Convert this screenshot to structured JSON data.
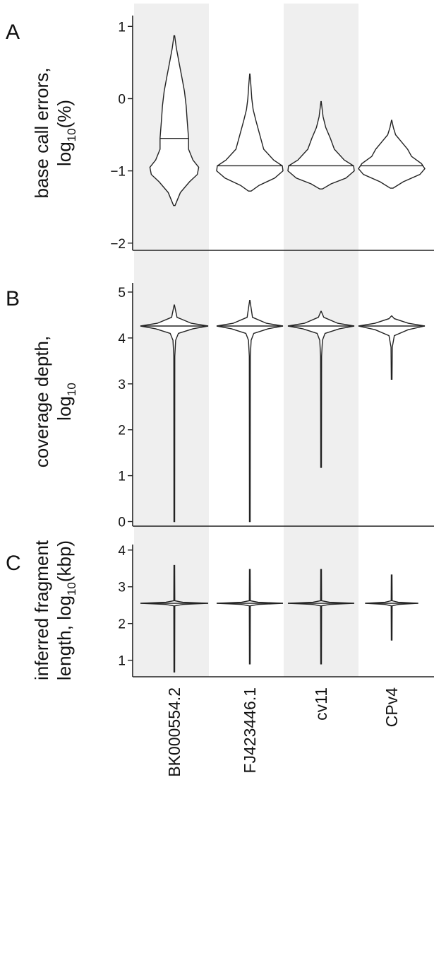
{
  "chart_data": {
    "type": "violin",
    "categories": [
      "BK000554.2",
      "FJ423446.1",
      "cv11",
      "CPv4"
    ],
    "shaded_categories": [
      "BK000554.2",
      "cv11"
    ],
    "shade_color": "#efefef",
    "panels": [
      {
        "letter": "A",
        "ylabel": [
          "base call errors,",
          "log",
          "10",
          "(%)"
        ],
        "ylim": [
          -2.1,
          1.15
        ],
        "yticks": [
          -2,
          -1,
          0,
          1
        ],
        "ytick_labels": [
          "−2",
          "−1",
          "0",
          "1"
        ],
        "violins": [
          {
            "min": -1.48,
            "max": 0.87,
            "median": -0.55,
            "profile": [
              [
                -1.48,
                0.02
              ],
              [
                -1.3,
                0.18
              ],
              [
                -1.15,
                0.45
              ],
              [
                -1.05,
                0.68
              ],
              [
                -0.95,
                0.72
              ],
              [
                -0.85,
                0.55
              ],
              [
                -0.7,
                0.42
              ],
              [
                -0.55,
                0.42
              ],
              [
                -0.3,
                0.38
              ],
              [
                -0.1,
                0.35
              ],
              [
                0.1,
                0.3
              ],
              [
                0.3,
                0.22
              ],
              [
                0.5,
                0.14
              ],
              [
                0.7,
                0.06
              ],
              [
                0.87,
                0.01
              ]
            ]
          },
          {
            "min": -1.28,
            "max": 0.34,
            "median": -0.93,
            "profile": [
              [
                -1.28,
                0.04
              ],
              [
                -1.2,
                0.28
              ],
              [
                -1.1,
                0.75
              ],
              [
                -1.0,
                1.0
              ],
              [
                -0.93,
                0.98
              ],
              [
                -0.85,
                0.72
              ],
              [
                -0.7,
                0.42
              ],
              [
                -0.5,
                0.3
              ],
              [
                -0.3,
                0.18
              ],
              [
                -0.15,
                0.1
              ],
              [
                0.0,
                0.06
              ],
              [
                0.2,
                0.03
              ],
              [
                0.34,
                0.005
              ]
            ]
          },
          {
            "min": -1.25,
            "max": -0.04,
            "median": -0.93,
            "profile": [
              [
                -1.25,
                0.04
              ],
              [
                -1.18,
                0.3
              ],
              [
                -1.1,
                0.75
              ],
              [
                -1.0,
                1.0
              ],
              [
                -0.93,
                0.98
              ],
              [
                -0.85,
                0.7
              ],
              [
                -0.7,
                0.4
              ],
              [
                -0.55,
                0.28
              ],
              [
                -0.4,
                0.14
              ],
              [
                -0.25,
                0.06
              ],
              [
                -0.04,
                0.005
              ]
            ]
          },
          {
            "min": -1.24,
            "max": -0.3,
            "median": -0.93,
            "profile": [
              [
                -1.24,
                0.04
              ],
              [
                -1.15,
                0.35
              ],
              [
                -1.05,
                0.85
              ],
              [
                -0.97,
                1.0
              ],
              [
                -0.9,
                0.9
              ],
              [
                -0.8,
                0.6
              ],
              [
                -0.7,
                0.48
              ],
              [
                -0.6,
                0.3
              ],
              [
                -0.5,
                0.12
              ],
              [
                -0.4,
                0.05
              ],
              [
                -0.3,
                0.005
              ]
            ]
          }
        ]
      },
      {
        "letter": "B",
        "ylabel": [
          "coverage depth,",
          "log",
          "10",
          ""
        ],
        "ylim": [
          -0.1,
          5.2
        ],
        "yticks": [
          0,
          1,
          2,
          3,
          4,
          5
        ],
        "ytick_labels": [
          "0",
          "1",
          "2",
          "3",
          "4",
          "5"
        ],
        "violins": [
          {
            "min": 0.0,
            "max": 4.72,
            "median": 4.26,
            "profile": [
              [
                0.0,
                0.01
              ],
              [
                3.6,
                0.015
              ],
              [
                3.95,
                0.04
              ],
              [
                4.1,
                0.12
              ],
              [
                4.2,
                0.55
              ],
              [
                4.26,
                1.0
              ],
              [
                4.32,
                0.5
              ],
              [
                4.45,
                0.08
              ],
              [
                4.72,
                0.005
              ]
            ]
          },
          {
            "min": 0.0,
            "max": 4.82,
            "median": 4.26,
            "profile": [
              [
                0.0,
                0.01
              ],
              [
                3.6,
                0.015
              ],
              [
                3.95,
                0.04
              ],
              [
                4.1,
                0.12
              ],
              [
                4.2,
                0.55
              ],
              [
                4.26,
                1.0
              ],
              [
                4.32,
                0.5
              ],
              [
                4.45,
                0.08
              ],
              [
                4.82,
                0.005
              ]
            ]
          },
          {
            "min": 1.18,
            "max": 4.58,
            "median": 4.26,
            "profile": [
              [
                1.18,
                0.01
              ],
              [
                3.6,
                0.015
              ],
              [
                3.95,
                0.04
              ],
              [
                4.1,
                0.12
              ],
              [
                4.2,
                0.55
              ],
              [
                4.26,
                1.0
              ],
              [
                4.32,
                0.5
              ],
              [
                4.45,
                0.08
              ],
              [
                4.58,
                0.005
              ]
            ]
          },
          {
            "min": 3.1,
            "max": 4.48,
            "median": 4.26,
            "profile": [
              [
                3.1,
                0.01
              ],
              [
                3.8,
                0.02
              ],
              [
                4.05,
                0.08
              ],
              [
                4.18,
                0.5
              ],
              [
                4.26,
                1.0
              ],
              [
                4.32,
                0.5
              ],
              [
                4.42,
                0.08
              ],
              [
                4.48,
                0.005
              ]
            ]
          }
        ]
      },
      {
        "letter": "C",
        "ylabel": [
          "inferred fragment",
          "length, log",
          "10",
          "(kbp)"
        ],
        "ylim": [
          0.55,
          4.15
        ],
        "yticks": [
          1,
          2,
          3,
          4
        ],
        "ytick_labels": [
          "1",
          "2",
          "3",
          "4"
        ],
        "violins": [
          {
            "min": 0.68,
            "max": 3.58,
            "median": 2.55,
            "profile": [
              [
                0.68,
                0.01
              ],
              [
                2.48,
                0.015
              ],
              [
                2.52,
                0.25
              ],
              [
                2.55,
                1.0
              ],
              [
                2.58,
                0.25
              ],
              [
                2.62,
                0.015
              ],
              [
                3.58,
                0.01
              ]
            ]
          },
          {
            "min": 0.9,
            "max": 3.47,
            "median": 2.55,
            "profile": [
              [
                0.9,
                0.01
              ],
              [
                2.48,
                0.015
              ],
              [
                2.52,
                0.25
              ],
              [
                2.55,
                1.0
              ],
              [
                2.58,
                0.25
              ],
              [
                2.62,
                0.015
              ],
              [
                3.47,
                0.01
              ]
            ]
          },
          {
            "min": 0.9,
            "max": 3.47,
            "median": 2.55,
            "profile": [
              [
                0.9,
                0.01
              ],
              [
                2.48,
                0.015
              ],
              [
                2.52,
                0.25
              ],
              [
                2.55,
                1.0
              ],
              [
                2.58,
                0.25
              ],
              [
                2.62,
                0.015
              ],
              [
                3.47,
                0.01
              ]
            ]
          },
          {
            "min": 1.55,
            "max": 3.32,
            "median": 2.55,
            "profile": [
              [
                1.55,
                0.01
              ],
              [
                2.48,
                0.015
              ],
              [
                2.52,
                0.2
              ],
              [
                2.55,
                0.8
              ],
              [
                2.58,
                0.2
              ],
              [
                2.62,
                0.015
              ],
              [
                3.32,
                0.01
              ]
            ]
          }
        ]
      }
    ]
  }
}
